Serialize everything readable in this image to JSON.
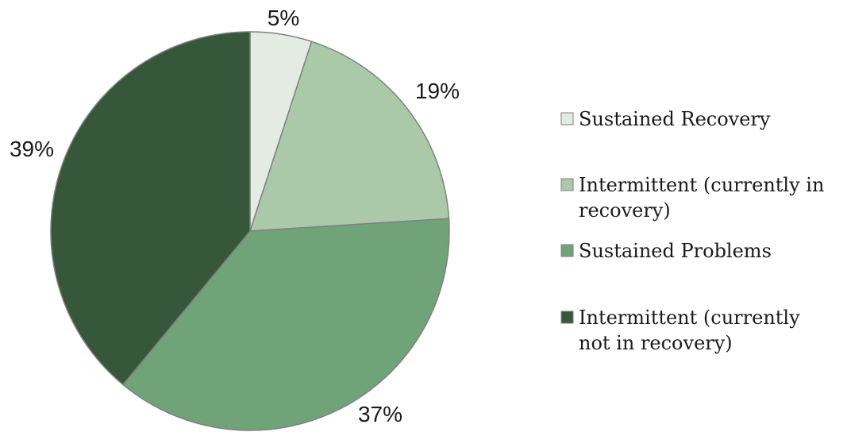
{
  "chart_data": {
    "type": "pie",
    "title": "",
    "series": [
      {
        "values": [
          5,
          19,
          37,
          39
        ],
        "labels": [
          "5%",
          "19%",
          "37%",
          "39%"
        ]
      }
    ],
    "categories": [
      [
        "Sustained Recovery"
      ],
      [
        "Intermittent (currently in",
        "recovery)"
      ],
      [
        "Sustained Problems"
      ],
      [
        "Intermittent (currently",
        "not in recovery)"
      ]
    ],
    "colors": [
      "#e2ece2",
      "#a9c9a9",
      "#70a378",
      "#37573a"
    ],
    "slice_edge_color": "#808080",
    "start_angle_deg": 0,
    "direction": "clockwise",
    "legend_position": "right"
  }
}
